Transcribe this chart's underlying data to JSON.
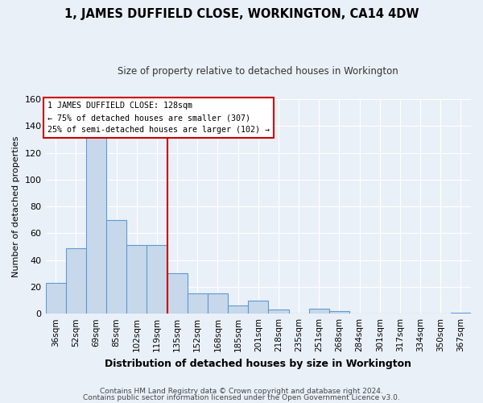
{
  "title": "1, JAMES DUFFIELD CLOSE, WORKINGTON, CA14 4DW",
  "subtitle": "Size of property relative to detached houses in Workington",
  "xlabel": "Distribution of detached houses by size in Workington",
  "ylabel": "Number of detached properties",
  "bar_color": "#c8d8eb",
  "bar_edge_color": "#5b9bd5",
  "background_color": "#eaf0f8",
  "grid_color": "#ffffff",
  "fig_background_color": "#eaf0f8",
  "categories": [
    "36sqm",
    "52sqm",
    "69sqm",
    "85sqm",
    "102sqm",
    "119sqm",
    "135sqm",
    "152sqm",
    "168sqm",
    "185sqm",
    "201sqm",
    "218sqm",
    "235sqm",
    "251sqm",
    "268sqm",
    "284sqm",
    "301sqm",
    "317sqm",
    "334sqm",
    "350sqm",
    "367sqm"
  ],
  "values": [
    23,
    49,
    133,
    70,
    51,
    51,
    30,
    15,
    15,
    6,
    10,
    3,
    0,
    4,
    2,
    0,
    0,
    0,
    0,
    0,
    1
  ],
  "ylim": [
    0,
    160
  ],
  "yticks": [
    0,
    20,
    40,
    60,
    80,
    100,
    120,
    140,
    160
  ],
  "property_label": "1 JAMES DUFFIELD CLOSE: 128sqm",
  "annotation_line1": "← 75% of detached houses are smaller (307)",
  "annotation_line2": "25% of semi-detached houses are larger (102) →",
  "vline_x_index": 5.5,
  "footer_line1": "Contains HM Land Registry data © Crown copyright and database right 2024.",
  "footer_line2": "Contains public sector information licensed under the Open Government Licence v3.0."
}
